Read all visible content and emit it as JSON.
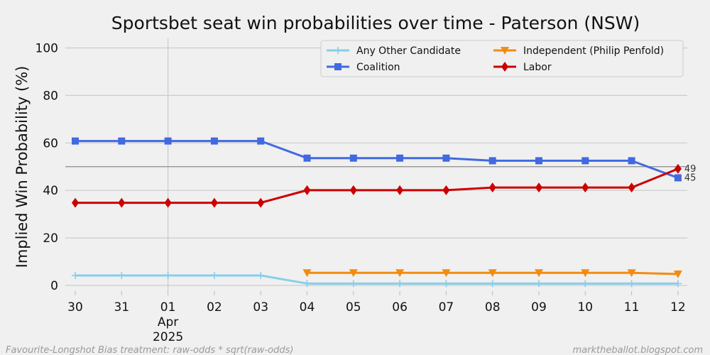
{
  "chart_data": {
    "type": "line",
    "title": "Sportsbet seat win probabilities over time - Paterson (NSW)",
    "xlabel": "",
    "ylabel": "Implied Win Probability (%)",
    "x_ticks": [
      "30",
      "31",
      "01",
      "02",
      "03",
      "04",
      "05",
      "06",
      "07",
      "08",
      "09",
      "10",
      "11",
      "12"
    ],
    "x_tick_sub": {
      "index": 2,
      "month": "Apr",
      "year": "2025"
    },
    "ylim": [
      0,
      104
    ],
    "y_ticks": [
      0,
      20,
      40,
      60,
      80,
      100
    ],
    "grid": true,
    "reference_line": 50,
    "legend_position": "top-right",
    "series": [
      {
        "name": "Any Other Candidate",
        "color": "#87ceeb",
        "marker": "plus",
        "x": [
          0,
          1,
          2,
          3,
          4,
          5,
          6,
          7,
          8,
          9,
          10,
          11,
          12,
          13
        ],
        "values": [
          4.2,
          4.2,
          4.2,
          4.2,
          4.2,
          0.8,
          0.8,
          0.8,
          0.8,
          0.8,
          0.8,
          0.8,
          0.8,
          0.8
        ]
      },
      {
        "name": "Coalition",
        "color": "#4169e1",
        "marker": "square",
        "x": [
          0,
          1,
          2,
          3,
          4,
          5,
          6,
          7,
          8,
          9,
          10,
          11,
          12,
          13
        ],
        "values": [
          60.8,
          60.8,
          60.8,
          60.8,
          60.8,
          53.6,
          53.6,
          53.6,
          53.6,
          52.5,
          52.5,
          52.5,
          52.5,
          45.3
        ]
      },
      {
        "name": "Independent (Philip Penfold)",
        "color": "#f28c0f",
        "marker": "triangle-down",
        "x": [
          5,
          6,
          7,
          8,
          9,
          10,
          11,
          12,
          13
        ],
        "values": [
          5.3,
          5.3,
          5.3,
          5.3,
          5.3,
          5.3,
          5.3,
          5.3,
          4.8
        ]
      },
      {
        "name": "Labor",
        "color": "#cc0000",
        "marker": "diamond",
        "x": [
          0,
          1,
          2,
          3,
          4,
          5,
          6,
          7,
          8,
          9,
          10,
          11,
          12,
          13
        ],
        "values": [
          34.8,
          34.8,
          34.8,
          34.8,
          34.8,
          40.1,
          40.1,
          40.1,
          40.1,
          41.2,
          41.2,
          41.2,
          41.2,
          49.1
        ]
      }
    ],
    "end_labels": [
      {
        "text": "49",
        "value": 49.1
      },
      {
        "text": "45",
        "value": 45.3
      }
    ]
  },
  "footer": {
    "left": "Favourite-Longshot Bias treatment: raw-odds * sqrt(raw-odds)",
    "right": "marktheballot.blogspot.com"
  }
}
